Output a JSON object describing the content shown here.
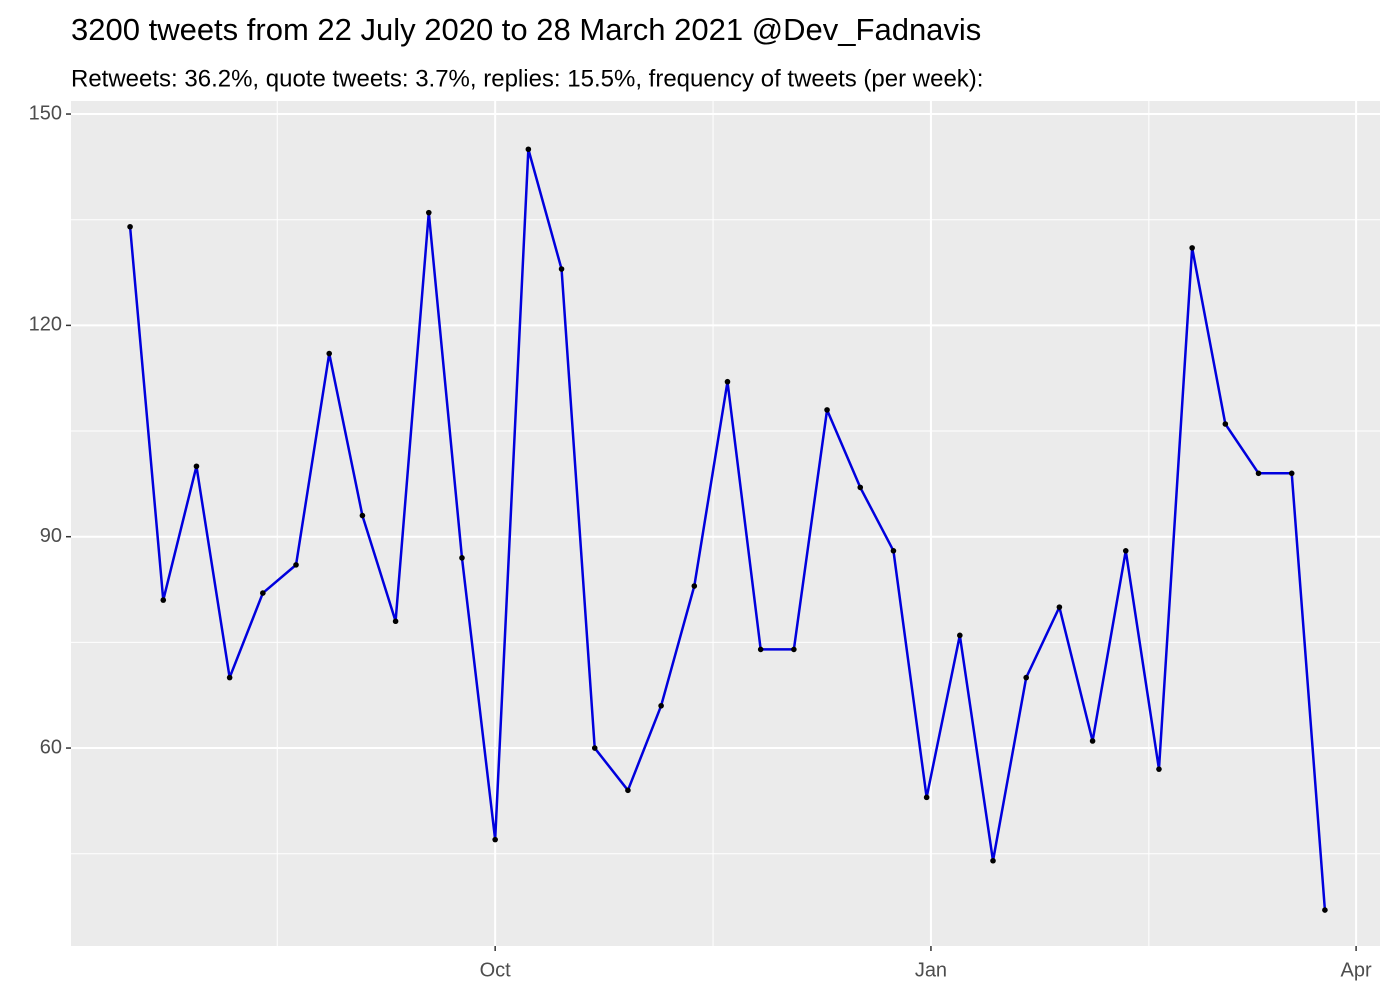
{
  "chart_data": {
    "type": "line",
    "title": "3200 tweets from 22 July 2020 to 28 March 2021 @Dev_Fadnavis",
    "subtitle": "Retweets: 36.2%, quote tweets: 3.7%, replies: 15.5%, frequency of tweets (per week):",
    "x": [
      0,
      1,
      2,
      3,
      4,
      5,
      6,
      7,
      8,
      9,
      10,
      11,
      12,
      13,
      14,
      15,
      16,
      17,
      18,
      19,
      20,
      21,
      22,
      23,
      24,
      25,
      26,
      27,
      28,
      29,
      30,
      31,
      32,
      33,
      34,
      35,
      36
    ],
    "series": [
      {
        "color": "#0000dd",
        "point_color": "#000000",
        "values": [
          134,
          81,
          100,
          70,
          82,
          86,
          116,
          93,
          78,
          136,
          87,
          47,
          145,
          128,
          60,
          54,
          66,
          83,
          112,
          74,
          74,
          108,
          97,
          88,
          53,
          76,
          44,
          70,
          80,
          61,
          88,
          57,
          131,
          106,
          99,
          99,
          37
        ]
      }
    ],
    "xlim": [
      -1.78,
      37.66
    ],
    "xticks": [
      {
        "value": 11.0,
        "label": "Oct"
      },
      {
        "value": 24.13,
        "label": "Jan"
      },
      {
        "value": 36.94,
        "label": "Apr"
      }
    ],
    "ylim": [
      31.9,
      151.85
    ],
    "yticks": [
      60,
      90,
      120,
      150
    ],
    "grid": true
  }
}
